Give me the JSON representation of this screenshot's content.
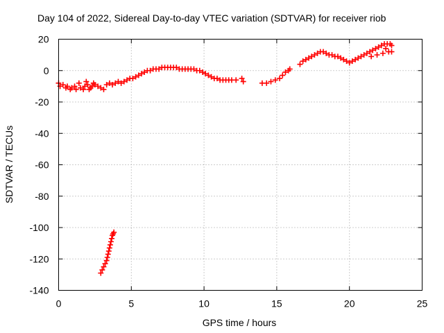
{
  "colors": {
    "series": "#ff0000",
    "frame": "#000000",
    "grid": "#9a9a9a"
  },
  "chart_data": {
    "type": "scatter",
    "title": "Day 104 of 2022, Sidereal Day-to-day VTEC variation (SDTVAR) for receiver riob",
    "xlabel": "GPS time / hours",
    "ylabel": "SDTVAR / TECUs",
    "xlim": [
      0,
      25
    ],
    "ylim": [
      -140,
      20
    ],
    "xticks": [
      0,
      5,
      10,
      15,
      20,
      25
    ],
    "yticks": [
      20,
      0,
      -20,
      -40,
      -60,
      -80,
      -100,
      -120,
      -140
    ],
    "grid": true,
    "marker": "plus",
    "series": [
      {
        "name": "SDTVAR",
        "points": [
          [
            0.0,
            -8
          ],
          [
            0.3,
            -9
          ],
          [
            0.6,
            -10
          ],
          [
            0.9,
            -11
          ],
          [
            1.2,
            -12
          ],
          [
            1.5,
            -11
          ],
          [
            1.8,
            -10
          ],
          [
            2.0,
            -9
          ],
          [
            2.2,
            -11
          ],
          [
            2.4,
            -8
          ],
          [
            0.1,
            -10
          ],
          [
            0.5,
            -11
          ],
          [
            0.8,
            -12
          ],
          [
            1.1,
            -10
          ],
          [
            1.4,
            -8
          ],
          [
            1.7,
            -12
          ],
          [
            1.9,
            -7
          ],
          [
            2.1,
            -12
          ],
          [
            2.3,
            -10
          ],
          [
            2.5,
            -9
          ],
          [
            2.7,
            -10
          ],
          [
            2.9,
            -11
          ],
          [
            3.1,
            -12
          ],
          [
            3.3,
            -9
          ],
          [
            3.5,
            -8
          ],
          [
            3.7,
            -9
          ],
          [
            3.9,
            -8
          ],
          [
            4.1,
            -7
          ],
          [
            4.3,
            -8
          ],
          [
            4.5,
            -7
          ],
          [
            4.7,
            -6
          ],
          [
            4.9,
            -5
          ],
          [
            5.1,
            -5
          ],
          [
            5.3,
            -4
          ],
          [
            5.5,
            -3
          ],
          [
            5.7,
            -2
          ],
          [
            5.9,
            -1
          ],
          [
            6.1,
            0
          ],
          [
            6.3,
            0
          ],
          [
            6.5,
            1
          ],
          [
            6.7,
            1
          ],
          [
            6.9,
            1
          ],
          [
            7.1,
            2
          ],
          [
            7.3,
            2
          ],
          [
            7.5,
            2
          ],
          [
            7.7,
            2
          ],
          [
            7.9,
            2
          ],
          [
            8.1,
            2
          ],
          [
            8.3,
            1
          ],
          [
            8.5,
            1
          ],
          [
            8.7,
            1
          ],
          [
            8.9,
            1
          ],
          [
            9.1,
            1
          ],
          [
            9.3,
            1
          ],
          [
            9.5,
            0
          ],
          [
            9.7,
            0
          ],
          [
            9.9,
            -1
          ],
          [
            10.1,
            -2
          ],
          [
            10.3,
            -3
          ],
          [
            10.5,
            -4
          ],
          [
            10.7,
            -5
          ],
          [
            10.9,
            -5
          ],
          [
            11.1,
            -6
          ],
          [
            11.3,
            -6
          ],
          [
            11.5,
            -6
          ],
          [
            11.7,
            -6
          ],
          [
            11.9,
            -6
          ],
          [
            12.2,
            -6
          ],
          [
            12.6,
            -5
          ],
          [
            12.7,
            -7
          ],
          [
            14.0,
            -8
          ],
          [
            14.3,
            -8
          ],
          [
            14.6,
            -7
          ],
          [
            14.9,
            -6
          ],
          [
            15.2,
            -5
          ],
          [
            15.4,
            -3
          ],
          [
            15.6,
            -1
          ],
          [
            15.8,
            0
          ],
          [
            15.9,
            1
          ],
          [
            16.6,
            4
          ],
          [
            16.8,
            6
          ],
          [
            17.0,
            7
          ],
          [
            17.2,
            8
          ],
          [
            17.4,
            9
          ],
          [
            17.6,
            10
          ],
          [
            17.8,
            11
          ],
          [
            18.0,
            12
          ],
          [
            18.2,
            12
          ],
          [
            18.4,
            11
          ],
          [
            18.6,
            10
          ],
          [
            18.8,
            10
          ],
          [
            19.0,
            9
          ],
          [
            19.2,
            9
          ],
          [
            19.4,
            8
          ],
          [
            19.6,
            7
          ],
          [
            19.8,
            6
          ],
          [
            20.0,
            5
          ],
          [
            20.2,
            6
          ],
          [
            20.4,
            7
          ],
          [
            20.6,
            8
          ],
          [
            20.8,
            9
          ],
          [
            21.0,
            10
          ],
          [
            21.2,
            11
          ],
          [
            21.4,
            12
          ],
          [
            21.6,
            13
          ],
          [
            21.8,
            14
          ],
          [
            22.0,
            15
          ],
          [
            22.2,
            16
          ],
          [
            22.4,
            17
          ],
          [
            22.6,
            17
          ],
          [
            22.8,
            17
          ],
          [
            22.9,
            16
          ],
          [
            22.5,
            14
          ],
          [
            22.7,
            12
          ],
          [
            22.9,
            12
          ],
          [
            22.3,
            11
          ],
          [
            21.9,
            10
          ],
          [
            21.5,
            9
          ],
          [
            2.9,
            -129
          ],
          [
            3.0,
            -127
          ],
          [
            3.1,
            -125
          ],
          [
            3.2,
            -123
          ],
          [
            3.3,
            -121
          ],
          [
            3.35,
            -119
          ],
          [
            3.4,
            -117
          ],
          [
            3.45,
            -115
          ],
          [
            3.5,
            -113
          ],
          [
            3.55,
            -111
          ],
          [
            3.6,
            -109
          ],
          [
            3.65,
            -107
          ],
          [
            3.7,
            -105
          ],
          [
            3.75,
            -104
          ],
          [
            3.8,
            -103
          ]
        ]
      }
    ]
  }
}
